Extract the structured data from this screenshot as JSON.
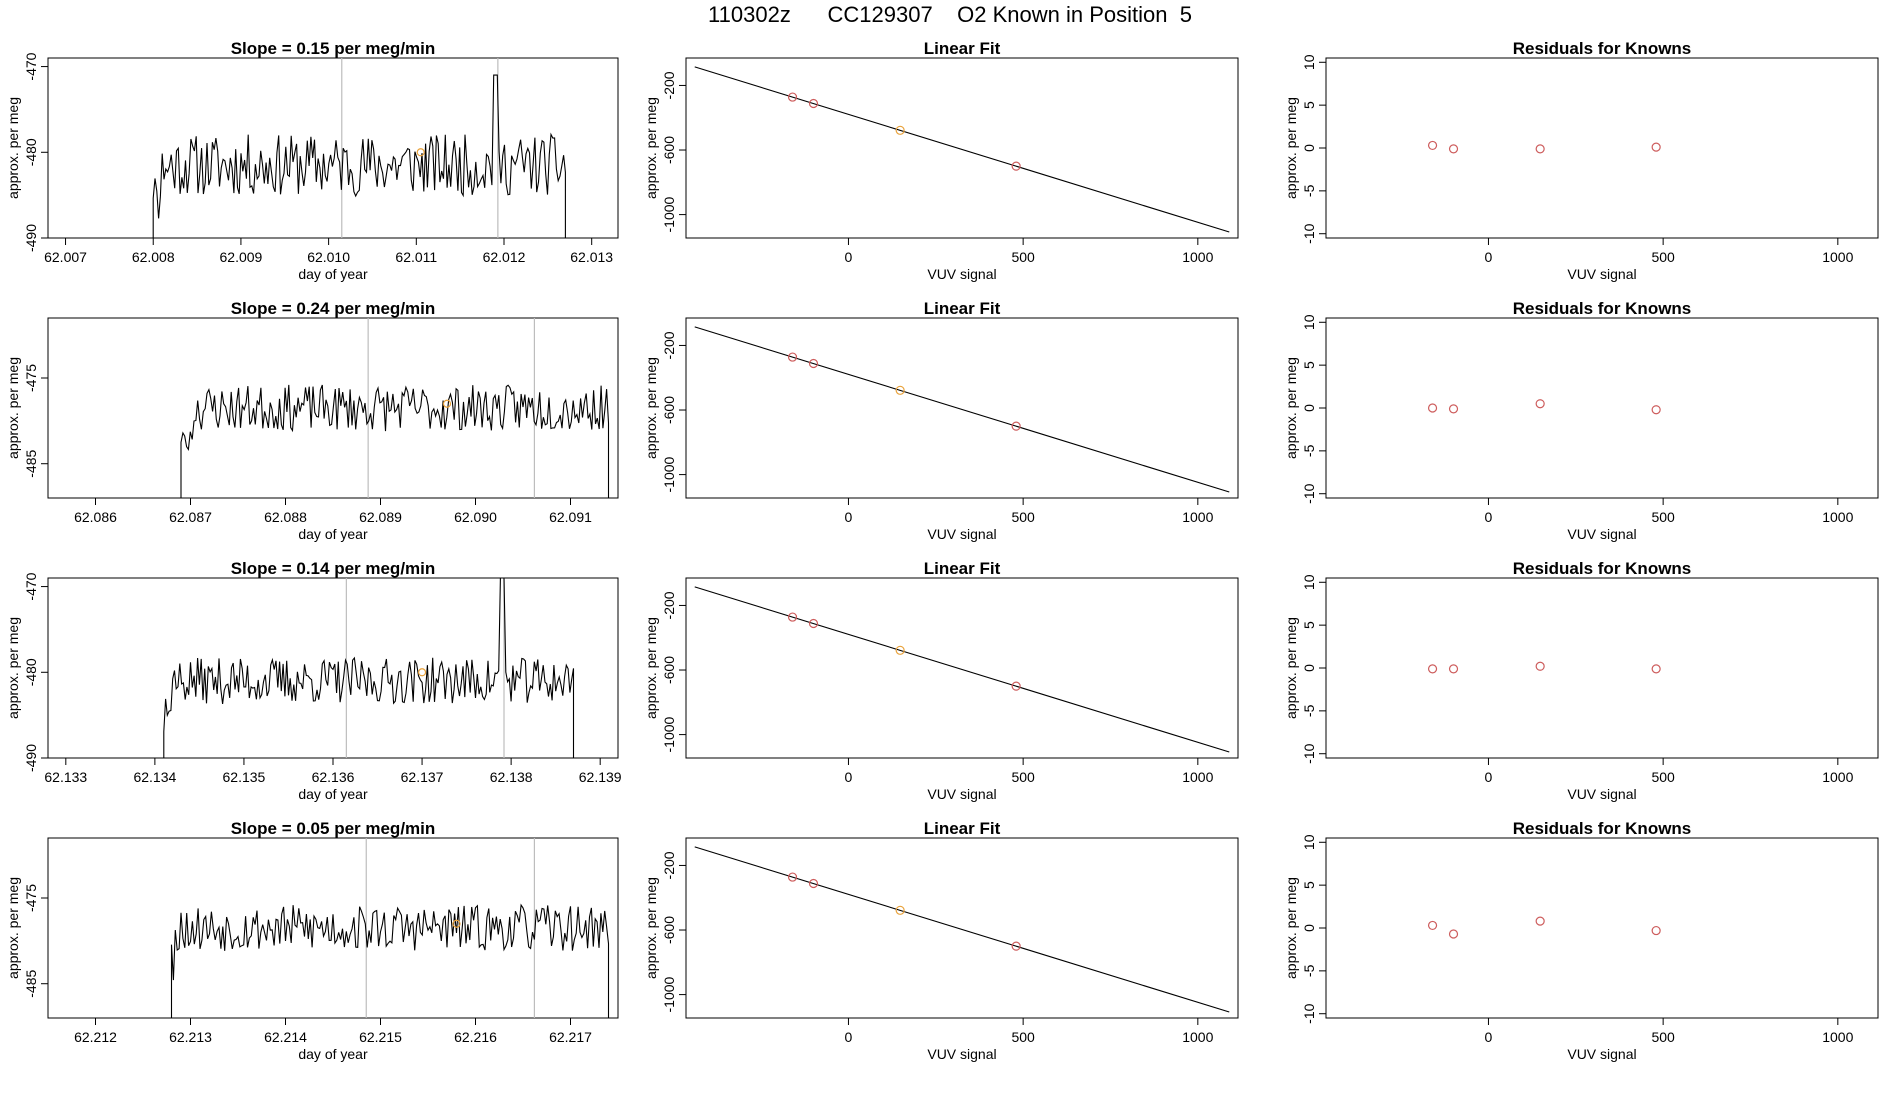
{
  "title": "110302z      CC129307    O2 Known in Position  5",
  "colors": {
    "known_point": "#cd5c5c",
    "target_point": "#e9a23b",
    "trace": "#000000",
    "marker_line": "#bdbdbd"
  },
  "chart_data": [
    {
      "row": 1,
      "series_panel": {
        "type": "line",
        "title": "Slope =  0.15  per meg/min",
        "xlabel": "day of year",
        "ylabel": "approx. per meg",
        "xlim": [
          62.0068,
          62.0133
        ],
        "ylim": [
          -490,
          -469
        ],
        "xticks": [
          62.007,
          62.008,
          62.009,
          62.01,
          62.011,
          62.012,
          62.013
        ],
        "xtick_labels": [
          "62.007",
          "62.008",
          "62.009",
          "62.010",
          "62.011",
          "62.012",
          "62.013"
        ],
        "yticks": [
          -490,
          -480,
          -470
        ],
        "ytick_labels": [
          "-490",
          "-480",
          "-470"
        ],
        "trace_start": 62.008,
        "trace_end": 62.0127,
        "trace_mean": -481.5,
        "trace_sd": 2.4,
        "seed": 11,
        "spikes": [
          {
            "x": 62.0119,
            "y": -471
          }
        ],
        "vlines": [
          62.01015,
          62.01193
        ],
        "marker": {
          "x": 62.01105,
          "y": -480
        }
      },
      "fit_panel": {
        "type": "scatter",
        "title": "Linear Fit",
        "xlabel": "VUV signal",
        "ylabel": "approx. per meg",
        "xlim": [
          -465,
          1115
        ],
        "ylim": [
          -1145,
          -30
        ],
        "xticks": [
          0,
          500,
          1000
        ],
        "xtick_labels": [
          "0",
          "500",
          "1000"
        ],
        "yticks": [
          -1000,
          -600,
          -200
        ],
        "ytick_labels": [
          "-1000",
          "-600",
          "-200"
        ],
        "line": {
          "x1": -440,
          "y1": -85,
          "x2": 1090,
          "y2": -1108
        },
        "points": [
          {
            "x": -160,
            "y": -272
          },
          {
            "x": -100,
            "y": -312
          },
          {
            "x": 148,
            "y": -478
          },
          {
            "x": 480,
            "y": -700
          }
        ],
        "highlight_index": 2
      },
      "residual_panel": {
        "type": "scatter",
        "title": "Residuals for Knowns",
        "xlabel": "VUV signal",
        "ylabel": "approx. per meg",
        "xlim": [
          -465,
          1115
        ],
        "ylim": [
          -10.5,
          10.5
        ],
        "xticks": [
          0,
          500,
          1000
        ],
        "xtick_labels": [
          "0",
          "500",
          "1000"
        ],
        "yticks": [
          -10,
          -5,
          0,
          5,
          10
        ],
        "ytick_labels": [
          "-10",
          "-5",
          "0",
          "5",
          "10"
        ],
        "points": [
          {
            "x": -160,
            "y": 0.3
          },
          {
            "x": -100,
            "y": -0.1
          },
          {
            "x": 148,
            "y": -0.1
          },
          {
            "x": 480,
            "y": 0.1
          }
        ]
      }
    },
    {
      "row": 2,
      "series_panel": {
        "type": "line",
        "title": "Slope =  0.24  per meg/min",
        "xlabel": "day of year",
        "ylabel": "approx. per meg",
        "xlim": [
          62.0855,
          62.0915
        ],
        "ylim": [
          -489,
          -468
        ],
        "xticks": [
          62.086,
          62.087,
          62.088,
          62.089,
          62.09,
          62.091
        ],
        "xtick_labels": [
          "62.086",
          "62.087",
          "62.088",
          "62.089",
          "62.090",
          "62.091"
        ],
        "yticks": [
          -485,
          -475
        ],
        "ytick_labels": [
          "-485",
          "-475"
        ],
        "trace_start": 62.0869,
        "trace_end": 62.0914,
        "trace_mean": -478.5,
        "trace_sd": 1.8,
        "seed": 23,
        "spikes": [],
        "vlines": [
          62.08887,
          62.09062
        ],
        "marker": {
          "x": 62.0897,
          "y": -478
        }
      },
      "fit_panel": {
        "type": "scatter",
        "title": "Linear Fit",
        "xlabel": "VUV signal",
        "ylabel": "approx. per meg",
        "xlim": [
          -465,
          1115
        ],
        "ylim": [
          -1145,
          -30
        ],
        "xticks": [
          0,
          500,
          1000
        ],
        "xtick_labels": [
          "0",
          "500",
          "1000"
        ],
        "yticks": [
          -1000,
          -600,
          -200
        ],
        "ytick_labels": [
          "-1000",
          "-600",
          "-200"
        ],
        "line": {
          "x1": -440,
          "y1": -85,
          "x2": 1090,
          "y2": -1108
        },
        "points": [
          {
            "x": -160,
            "y": -272
          },
          {
            "x": -100,
            "y": -312
          },
          {
            "x": 148,
            "y": -478
          },
          {
            "x": 480,
            "y": -700
          }
        ],
        "highlight_index": 2
      },
      "residual_panel": {
        "type": "scatter",
        "title": "Residuals for Knowns",
        "xlabel": "VUV signal",
        "ylabel": "approx. per meg",
        "xlim": [
          -465,
          1115
        ],
        "ylim": [
          -10.5,
          10.5
        ],
        "xticks": [
          0,
          500,
          1000
        ],
        "xtick_labels": [
          "0",
          "500",
          "1000"
        ],
        "yticks": [
          -10,
          -5,
          0,
          5,
          10
        ],
        "ytick_labels": [
          "-10",
          "-5",
          "0",
          "5",
          "10"
        ],
        "points": [
          {
            "x": -160,
            "y": 0.0
          },
          {
            "x": -100,
            "y": -0.1
          },
          {
            "x": 148,
            "y": 0.5
          },
          {
            "x": 480,
            "y": -0.2
          }
        ]
      }
    },
    {
      "row": 3,
      "series_panel": {
        "type": "line",
        "title": "Slope =  0.14  per meg/min",
        "xlabel": "day of year",
        "ylabel": "approx. per meg",
        "xlim": [
          62.1328,
          62.1392
        ],
        "ylim": [
          -490,
          -469
        ],
        "xticks": [
          62.133,
          62.134,
          62.135,
          62.136,
          62.137,
          62.138,
          62.139
        ],
        "xtick_labels": [
          "62.133",
          "62.134",
          "62.135",
          "62.136",
          "62.137",
          "62.138",
          "62.139"
        ],
        "yticks": [
          -490,
          -480,
          -470
        ],
        "ytick_labels": [
          "-490",
          "-480",
          "-470"
        ],
        "trace_start": 62.1341,
        "trace_end": 62.1387,
        "trace_mean": -481,
        "trace_sd": 1.8,
        "seed": 37,
        "spikes": [
          {
            "x": 62.1379,
            "y": -469
          }
        ],
        "vlines": [
          62.13615,
          62.13792
        ],
        "marker": {
          "x": 62.137,
          "y": -480
        }
      },
      "fit_panel": {
        "type": "scatter",
        "title": "Linear Fit",
        "xlabel": "VUV signal",
        "ylabel": "approx. per meg",
        "xlim": [
          -465,
          1115
        ],
        "ylim": [
          -1145,
          -30
        ],
        "xticks": [
          0,
          500,
          1000
        ],
        "xtick_labels": [
          "0",
          "500",
          "1000"
        ],
        "yticks": [
          -1000,
          -600,
          -200
        ],
        "ytick_labels": [
          "-1000",
          "-600",
          "-200"
        ],
        "line": {
          "x1": -440,
          "y1": -85,
          "x2": 1090,
          "y2": -1108
        },
        "points": [
          {
            "x": -160,
            "y": -272
          },
          {
            "x": -100,
            "y": -312
          },
          {
            "x": 148,
            "y": -478
          },
          {
            "x": 480,
            "y": -700
          }
        ],
        "highlight_index": 2
      },
      "residual_panel": {
        "type": "scatter",
        "title": "Residuals for Knowns",
        "xlabel": "VUV signal",
        "ylabel": "approx. per meg",
        "xlim": [
          -465,
          1115
        ],
        "ylim": [
          -10.5,
          10.5
        ],
        "xticks": [
          0,
          500,
          1000
        ],
        "xtick_labels": [
          "0",
          "500",
          "1000"
        ],
        "yticks": [
          -10,
          -5,
          0,
          5,
          10
        ],
        "ytick_labels": [
          "-10",
          "-5",
          "0",
          "5",
          "10"
        ],
        "points": [
          {
            "x": -160,
            "y": -0.1
          },
          {
            "x": -100,
            "y": -0.1
          },
          {
            "x": 148,
            "y": 0.2
          },
          {
            "x": 480,
            "y": -0.1
          }
        ]
      }
    },
    {
      "row": 4,
      "series_panel": {
        "type": "line",
        "title": "Slope =  0.05  per meg/min",
        "xlabel": "day of year",
        "ylabel": "approx. per meg",
        "xlim": [
          62.2115,
          62.2175
        ],
        "ylim": [
          -489,
          -468
        ],
        "xticks": [
          62.212,
          62.213,
          62.214,
          62.215,
          62.216,
          62.217
        ],
        "xtick_labels": [
          "62.212",
          "62.213",
          "62.214",
          "62.215",
          "62.216",
          "62.217"
        ],
        "yticks": [
          -485,
          -475
        ],
        "ytick_labels": [
          "-485",
          "-475"
        ],
        "trace_start": 62.2128,
        "trace_end": 62.2174,
        "trace_mean": -478.5,
        "trace_sd": 1.8,
        "seed": 53,
        "spikes": [],
        "vlines": [
          62.21485,
          62.21662
        ],
        "marker": {
          "x": 62.2158,
          "y": -478
        }
      },
      "fit_panel": {
        "type": "scatter",
        "title": "Linear Fit",
        "xlabel": "VUV signal",
        "ylabel": "approx. per meg",
        "xlim": [
          -465,
          1115
        ],
        "ylim": [
          -1145,
          -30
        ],
        "xticks": [
          0,
          500,
          1000
        ],
        "xtick_labels": [
          "0",
          "500",
          "1000"
        ],
        "yticks": [
          -1000,
          -600,
          -200
        ],
        "ytick_labels": [
          "-1000",
          "-600",
          "-200"
        ],
        "line": {
          "x1": -440,
          "y1": -85,
          "x2": 1090,
          "y2": -1108
        },
        "points": [
          {
            "x": -160,
            "y": -272
          },
          {
            "x": -100,
            "y": -312
          },
          {
            "x": 148,
            "y": -478
          },
          {
            "x": 480,
            "y": -700
          }
        ],
        "highlight_index": 2
      },
      "residual_panel": {
        "type": "scatter",
        "title": "Residuals for Knowns",
        "xlabel": "VUV signal",
        "ylabel": "approx. per meg",
        "xlim": [
          -465,
          1115
        ],
        "ylim": [
          -10.5,
          10.5
        ],
        "xticks": [
          0,
          500,
          1000
        ],
        "xtick_labels": [
          "0",
          "500",
          "1000"
        ],
        "yticks": [
          -10,
          -5,
          0,
          5,
          10
        ],
        "ytick_labels": [
          "-10",
          "-5",
          "0",
          "5",
          "10"
        ],
        "points": [
          {
            "x": -160,
            "y": 0.3
          },
          {
            "x": -100,
            "y": -0.7
          },
          {
            "x": 148,
            "y": 0.8
          },
          {
            "x": 480,
            "y": -0.3
          }
        ]
      }
    }
  ]
}
